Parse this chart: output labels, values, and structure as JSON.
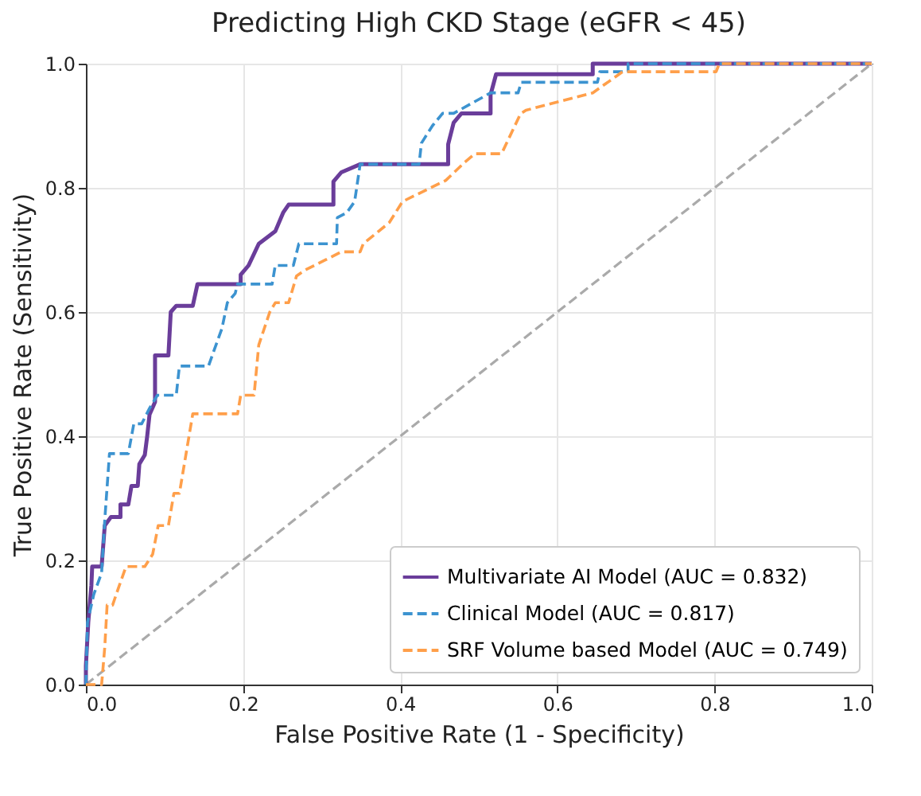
{
  "chart_data": {
    "type": "line",
    "title": "Predicting High CKD Stage (eGFR < 45)",
    "xlabel": "False Positive Rate (1 - Specificity)",
    "ylabel": "True Positive Rate (Sensitivity)",
    "xlim": [
      0,
      1
    ],
    "ylim": [
      0,
      1
    ],
    "xticks": [
      {
        "value": 0,
        "label": "0.0"
      },
      0.2,
      0.4,
      0.6,
      0.8,
      {
        "value": 1,
        "label": "1.0"
      }
    ],
    "yticks": [
      {
        "value": 0,
        "label": "0.0"
      },
      0.2,
      0.4,
      0.6,
      0.8,
      {
        "value": 1,
        "label": "1.0"
      }
    ],
    "grid": true,
    "legend": "bottom right",
    "marker": "none",
    "series": [
      {
        "name": "Multivariate AI Model (AUC = 0.832)",
        "color": "#6a3d9a",
        "line_style": "solid",
        "x": [
          0,
          0,
          0.003,
          0.007,
          0.008,
          0.02,
          0.024,
          0.032,
          0.044,
          0.044,
          0.054,
          0.058,
          0.066,
          0.068,
          0.075,
          0.078,
          0.081,
          0.088,
          0.088,
          0.105,
          0.108,
          0.115,
          0.136,
          0.142,
          0.197,
          0.197,
          0.207,
          0.22,
          0.241,
          0.251,
          0.258,
          0.315,
          0.315,
          0.325,
          0.349,
          0.461,
          0.461,
          0.468,
          0.478,
          0.515,
          0.515,
          0.522,
          0.645,
          0.645,
          1
        ],
        "values": [
          0,
          0.03,
          0.1,
          0.16,
          0.19,
          0.19,
          0.256,
          0.27,
          0.27,
          0.29,
          0.29,
          0.32,
          0.32,
          0.355,
          0.37,
          0.4,
          0.435,
          0.455,
          0.53,
          0.53,
          0.6,
          0.61,
          0.61,
          0.645,
          0.645,
          0.66,
          0.675,
          0.71,
          0.73,
          0.76,
          0.773,
          0.773,
          0.81,
          0.825,
          0.838,
          0.838,
          0.87,
          0.905,
          0.92,
          0.92,
          0.95,
          0.983,
          0.983,
          1,
          1
        ]
      },
      {
        "name": "Clinical Model (AUC = 0.817)",
        "color": "#3c93d0",
        "line_style": "dashed",
        "x": [
          0,
          0.002,
          0.01,
          0.02,
          0.024,
          0.03,
          0.054,
          0.061,
          0.071,
          0.081,
          0.091,
          0.115,
          0.119,
          0.156,
          0.163,
          0.173,
          0.18,
          0.19,
          0.193,
          0.237,
          0.241,
          0.264,
          0.271,
          0.319,
          0.32,
          0.332,
          0.342,
          0.349,
          0.424,
          0.427,
          0.441,
          0.454,
          0.468,
          0.515,
          0.515,
          0.55,
          0.554,
          0.651,
          0.654,
          0.69,
          0.69,
          1
        ],
        "values": [
          0,
          0.1,
          0.145,
          0.18,
          0.265,
          0.372,
          0.372,
          0.42,
          0.42,
          0.445,
          0.466,
          0.466,
          0.513,
          0.513,
          0.538,
          0.573,
          0.615,
          0.63,
          0.645,
          0.645,
          0.675,
          0.675,
          0.71,
          0.71,
          0.752,
          0.76,
          0.778,
          0.838,
          0.838,
          0.872,
          0.9,
          0.92,
          0.92,
          0.953,
          0.953,
          0.953,
          0.97,
          0.97,
          0.987,
          0.987,
          1,
          1
        ]
      },
      {
        "name": "SRF Volume based Model (AUC = 0.749)",
        "color": "#ff9f4a",
        "line_style": "dashed",
        "x": [
          0,
          0.02,
          0.024,
          0.027,
          0.034,
          0.041,
          0.051,
          0.075,
          0.085,
          0.092,
          0.105,
          0.112,
          0.119,
          0.136,
          0.193,
          0.197,
          0.214,
          0.22,
          0.234,
          0.241,
          0.258,
          0.268,
          0.278,
          0.305,
          0.325,
          0.349,
          0.353,
          0.386,
          0.403,
          0.458,
          0.481,
          0.495,
          0.529,
          0.553,
          0.56,
          0.645,
          0.683,
          0.802,
          0.806,
          1
        ],
        "values": [
          0,
          0,
          0.06,
          0.128,
          0.128,
          0.154,
          0.19,
          0.19,
          0.21,
          0.256,
          0.256,
          0.308,
          0.308,
          0.436,
          0.436,
          0.466,
          0.466,
          0.547,
          0.6,
          0.615,
          0.615,
          0.658,
          0.667,
          0.684,
          0.697,
          0.697,
          0.71,
          0.744,
          0.778,
          0.812,
          0.84,
          0.855,
          0.855,
          0.919,
          0.925,
          0.953,
          0.987,
          0.987,
          1,
          1
        ]
      },
      {
        "color": "#aaaaaa",
        "line_style": "dashed",
        "x": [
          0,
          1
        ],
        "values": [
          0,
          1
        ]
      }
    ]
  }
}
